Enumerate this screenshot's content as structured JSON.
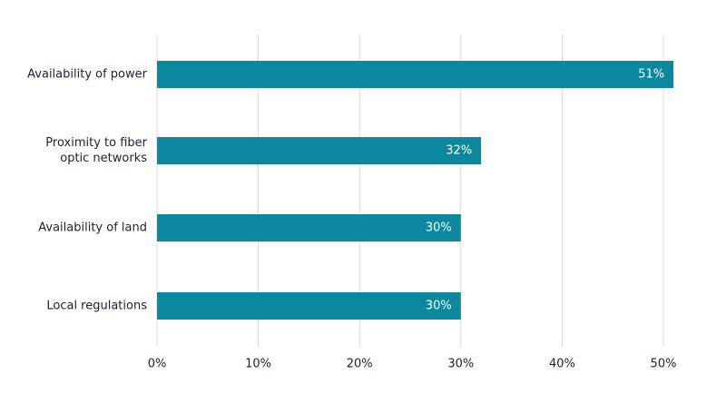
{
  "chart_data": {
    "type": "barh",
    "categories": [
      "Availability of power",
      "Proximity to fiber optic networks",
      "Availability of land",
      "Local regulations"
    ],
    "values": [
      51,
      32,
      30,
      30
    ],
    "value_labels": [
      "51%",
      "32%",
      "30%",
      "30%"
    ],
    "color": "#0b889e",
    "xlim": [
      0,
      52
    ],
    "xticks": [
      {
        "value": 0,
        "label": "0%"
      },
      {
        "value": 10,
        "label": "10%"
      },
      {
        "value": 20,
        "label": "20%"
      },
      {
        "value": 30,
        "label": "30%"
      },
      {
        "value": 40,
        "label": "40%"
      },
      {
        "value": 50,
        "label": "50%"
      }
    ],
    "grid": true
  }
}
